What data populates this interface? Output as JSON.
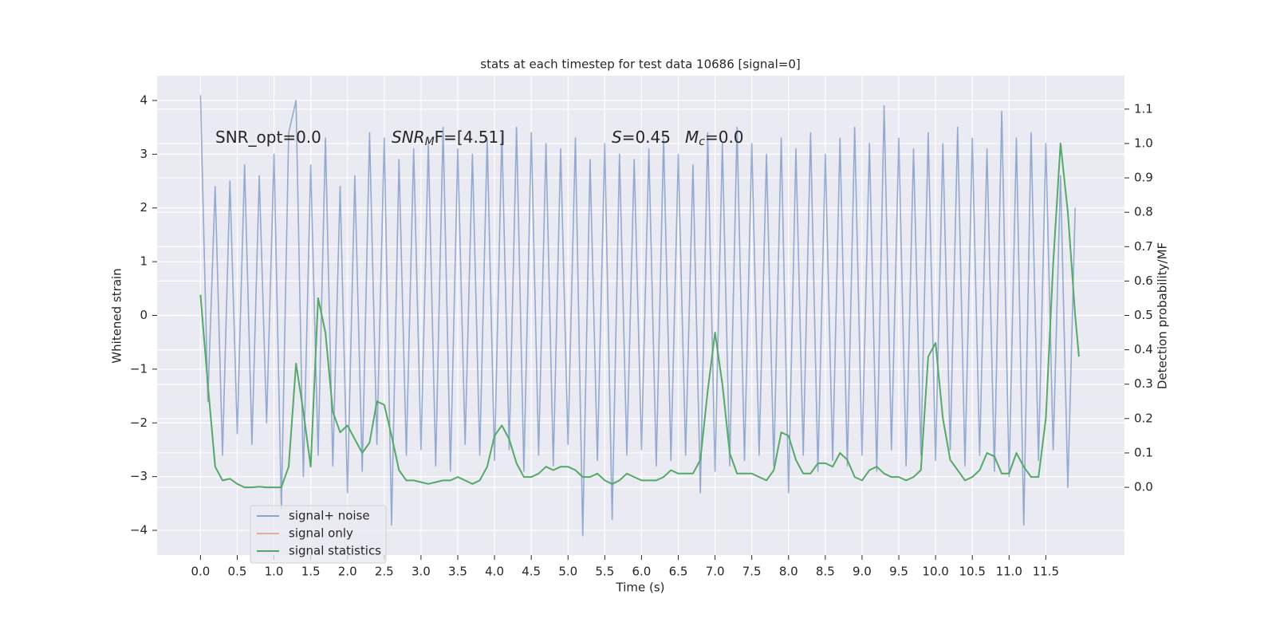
{
  "chart_data": {
    "type": "line",
    "title": "stats at each timestep for test data 10686 [signal=0]",
    "xlabel": "Time (s)",
    "ylabel": "Whitened strain",
    "y2label": "Detection probability/MF",
    "annotations": [
      {
        "text": "SNR_opt=0.0"
      },
      {
        "symbol": "SNR",
        "sub": "M",
        "text": "F=[4.51]"
      },
      {
        "symbol": "S",
        "text": "=0.45"
      },
      {
        "symbol": "M",
        "sub": "c",
        "text": "=0.0"
      }
    ],
    "xlim": [
      -0.59,
      12.57
    ],
    "ylim": [
      -4.46,
      4.46
    ],
    "y2lim": [
      -0.197,
      1.197
    ],
    "xticks": [
      {
        "value": 0,
        "label": "0.0"
      },
      0.5,
      {
        "value": 1,
        "label": "1.0"
      },
      1.5,
      {
        "value": 2,
        "label": "2.0"
      },
      2.5,
      {
        "value": 3,
        "label": "3.0"
      },
      3.5,
      {
        "value": 4,
        "label": "4.0"
      },
      4.5,
      {
        "value": 5,
        "label": "5.0"
      },
      5.5,
      {
        "value": 6,
        "label": "6.0"
      },
      6.5,
      {
        "value": 7,
        "label": "7.0"
      },
      7.5,
      {
        "value": 8,
        "label": "8.0"
      },
      8.5,
      {
        "value": 9,
        "label": "9.0"
      },
      9.5,
      {
        "value": 10,
        "label": "10.0"
      },
      10.5,
      {
        "value": 11,
        "label": "11.0"
      },
      11.5
    ],
    "yticks": [
      {
        "value": -4,
        "label": "−4"
      },
      {
        "value": -3,
        "label": "−3"
      },
      {
        "value": -2,
        "label": "−2"
      },
      {
        "value": -1,
        "label": "−1"
      },
      0,
      1,
      2,
      3,
      4
    ],
    "y2ticks": [
      {
        "value": 0,
        "label": "0.0"
      },
      0.1,
      0.2,
      0.3,
      0.4,
      0.5,
      0.6,
      0.7,
      0.8,
      0.9,
      {
        "value": 1,
        "label": "1.0"
      },
      1.1
    ],
    "grid": true,
    "legend": "lower left",
    "series": [
      {
        "name": "signal+ noise",
        "color": "#4c72b0",
        "x": [
          0,
          0.1,
          0.2,
          0.3,
          0.4,
          0.5,
          0.6,
          0.7,
          0.8,
          0.9,
          1,
          1.1,
          1.2,
          1.3,
          1.4,
          1.5,
          1.6,
          1.7,
          1.8,
          1.9,
          2,
          2.1,
          2.2,
          2.3,
          2.4,
          2.5,
          2.6,
          2.7,
          2.8,
          2.9,
          3,
          3.1,
          3.2,
          3.3,
          3.4,
          3.5,
          3.6,
          3.7,
          3.8,
          3.9,
          4,
          4.1,
          4.2,
          4.3,
          4.4,
          4.5,
          4.6,
          4.7,
          4.8,
          4.9,
          5,
          5.1,
          5.2,
          5.3,
          5.4,
          5.5,
          5.6,
          5.7,
          5.8,
          5.9,
          6,
          6.1,
          6.2,
          6.3,
          6.4,
          6.5,
          6.6,
          6.7,
          6.8,
          6.9,
          7,
          7.1,
          7.2,
          7.3,
          7.4,
          7.5,
          7.6,
          7.7,
          7.8,
          7.9,
          8,
          8.1,
          8.2,
          8.3,
          8.4,
          8.5,
          8.6,
          8.7,
          8.8,
          8.9,
          9,
          9.1,
          9.2,
          9.3,
          9.4,
          9.5,
          9.6,
          9.7,
          9.8,
          9.9,
          10,
          10.1,
          10.2,
          10.3,
          10.4,
          10.5,
          10.6,
          10.7,
          10.8,
          10.9,
          11,
          11.1,
          11.2,
          11.3,
          11.4,
          11.5,
          11.6,
          11.7,
          11.8,
          11.9
        ],
        "values": [
          4.1,
          -1.6,
          2.4,
          -2.6,
          2.5,
          -2.2,
          2.8,
          -2.4,
          2.6,
          -2.0,
          3.0,
          -3.6,
          3.4,
          4.0,
          -3.0,
          2.8,
          -2.6,
          3.3,
          -2.8,
          2.4,
          -3.3,
          2.6,
          -2.9,
          3.4,
          -2.4,
          3.3,
          -3.9,
          2.9,
          -2.6,
          3.1,
          -2.5,
          3.2,
          -2.8,
          3.5,
          -2.9,
          3.1,
          -2.4,
          3.0,
          -2.6,
          3.3,
          -2.7,
          3.4,
          -2.5,
          3.5,
          -2.9,
          3.4,
          -2.6,
          3.2,
          -2.8,
          3.1,
          -2.4,
          3.3,
          -4.1,
          2.9,
          -2.7,
          3.2,
          -3.8,
          3.0,
          -2.6,
          2.9,
          -2.5,
          3.1,
          -2.8,
          3.3,
          -2.7,
          3.0,
          -2.6,
          2.8,
          -3.3,
          3.4,
          -2.9,
          3.2,
          -2.8,
          3.5,
          -2.7,
          3.2,
          -2.6,
          3.0,
          -2.8,
          3.3,
          -3.3,
          3.1,
          -2.6,
          3.4,
          -2.9,
          3.0,
          -2.7,
          3.3,
          -2.8,
          3.5,
          -2.6,
          3.2,
          -2.9,
          3.9,
          -2.5,
          3.3,
          -2.8,
          3.1,
          -2.6,
          3.4,
          -2.7,
          3.2,
          -2.5,
          3.5,
          -2.8,
          3.3,
          -2.6,
          3.1,
          -2.9,
          3.8,
          -3.0,
          3.3,
          -3.9,
          3.4,
          -2.7,
          3.2,
          -2.5,
          2.6,
          -3.2,
          2.0
        ]
      },
      {
        "name": "signal only",
        "color": "#dd8452",
        "x": [],
        "values": []
      },
      {
        "name": "signal statistics",
        "color": "#55a868",
        "axis": "y2",
        "x": [
          0,
          0.1,
          0.2,
          0.3,
          0.4,
          0.5,
          0.6,
          0.7,
          0.8,
          0.9,
          1,
          1.1,
          1.2,
          1.3,
          1.4,
          1.5,
          1.6,
          1.7,
          1.8,
          1.9,
          2,
          2.1,
          2.2,
          2.3,
          2.4,
          2.5,
          2.6,
          2.7,
          2.8,
          2.9,
          3,
          3.1,
          3.2,
          3.3,
          3.4,
          3.5,
          3.6,
          3.7,
          3.8,
          3.9,
          4,
          4.1,
          4.2,
          4.3,
          4.4,
          4.5,
          4.6,
          4.7,
          4.8,
          4.9,
          5,
          5.1,
          5.2,
          5.3,
          5.4,
          5.5,
          5.6,
          5.7,
          5.8,
          5.9,
          6,
          6.1,
          6.2,
          6.3,
          6.4,
          6.5,
          6.6,
          6.7,
          6.8,
          6.9,
          7,
          7.1,
          7.2,
          7.3,
          7.4,
          7.5,
          7.6,
          7.7,
          7.8,
          7.9,
          8,
          8.1,
          8.2,
          8.3,
          8.4,
          8.5,
          8.6,
          8.7,
          8.8,
          8.9,
          9,
          9.1,
          9.2,
          9.3,
          9.4,
          9.5,
          9.6,
          9.7,
          9.8,
          9.9,
          10,
          10.1,
          10.2,
          10.3,
          10.4,
          10.5,
          10.6,
          10.7,
          10.8,
          10.9,
          11,
          11.1,
          11.2,
          11.3,
          11.4,
          11.5,
          11.6,
          11.7,
          11.8,
          11.9,
          11.95
        ],
        "values": [
          0.56,
          0.3,
          0.06,
          0.02,
          0.025,
          0.01,
          0,
          0,
          0.002,
          0,
          0,
          0,
          0.06,
          0.36,
          0.22,
          0.06,
          0.55,
          0.45,
          0.22,
          0.16,
          0.18,
          0.14,
          0.1,
          0.13,
          0.25,
          0.24,
          0.15,
          0.05,
          0.02,
          0.02,
          0.015,
          0.01,
          0.015,
          0.02,
          0.02,
          0.03,
          0.02,
          0.01,
          0.02,
          0.06,
          0.15,
          0.18,
          0.14,
          0.07,
          0.03,
          0.03,
          0.04,
          0.06,
          0.05,
          0.06,
          0.06,
          0.05,
          0.03,
          0.03,
          0.04,
          0.02,
          0.01,
          0.02,
          0.04,
          0.03,
          0.02,
          0.02,
          0.02,
          0.03,
          0.05,
          0.04,
          0.04,
          0.04,
          0.08,
          0.28,
          0.45,
          0.3,
          0.1,
          0.04,
          0.04,
          0.04,
          0.03,
          0.02,
          0.05,
          0.16,
          0.15,
          0.08,
          0.04,
          0.04,
          0.07,
          0.07,
          0.06,
          0.1,
          0.08,
          0.03,
          0.02,
          0.05,
          0.06,
          0.04,
          0.03,
          0.03,
          0.02,
          0.03,
          0.05,
          0.38,
          0.42,
          0.2,
          0.08,
          0.05,
          0.02,
          0.03,
          0.05,
          0.1,
          0.09,
          0.04,
          0.04,
          0.1,
          0.06,
          0.03,
          0.03,
          0.2,
          0.65,
          1.0,
          0.8,
          0.5,
          0.38
        ]
      }
    ]
  }
}
